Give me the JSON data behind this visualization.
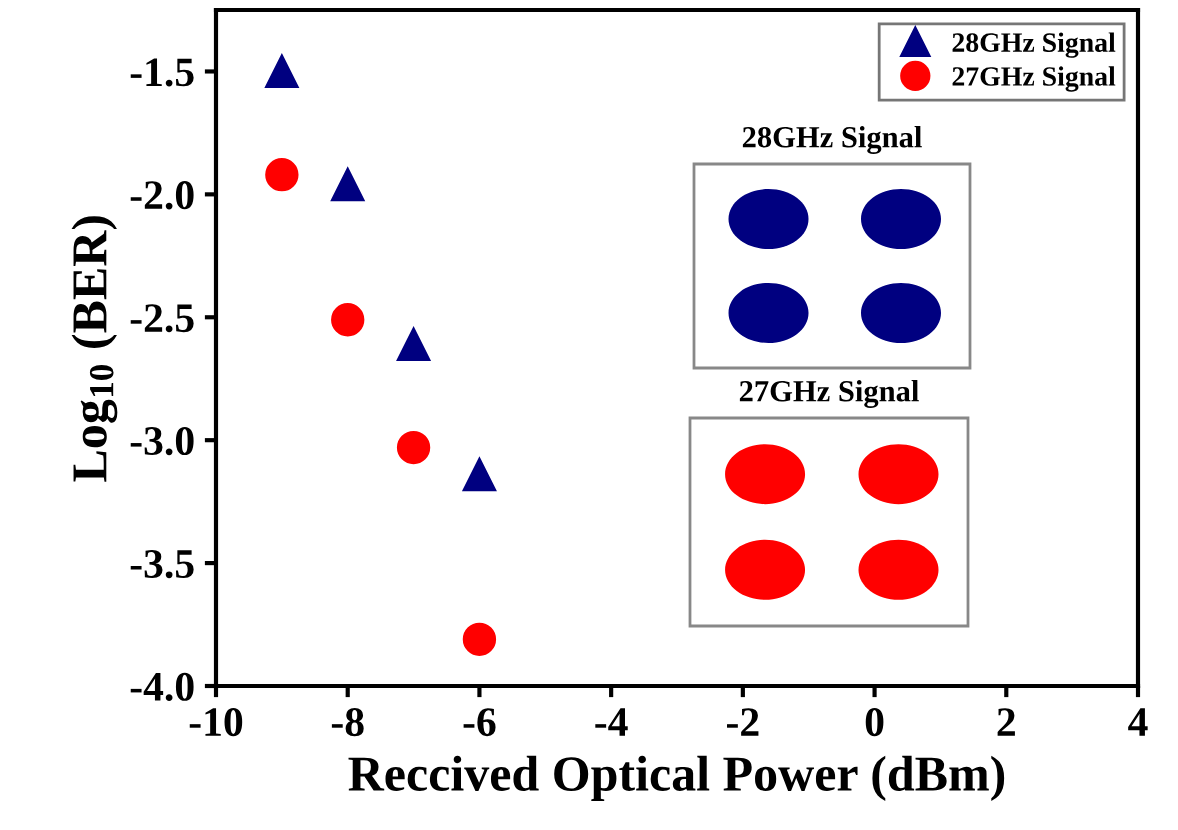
{
  "chart_data": {
    "type": "scatter",
    "xlabel": "Reccived Optical Power (dBm)",
    "ylabel": "Log$_{10}$ (BER)",
    "x": [
      -9,
      -8,
      -7,
      -6
    ],
    "series": [
      {
        "name": "28GHz Signal",
        "color": "#000080",
        "marker": "triangle",
        "values": [
          -1.5,
          -1.96,
          -2.61,
          -3.14
        ]
      },
      {
        "name": "27GHz Signal",
        "color": "#ff0000",
        "marker": "circle",
        "values": [
          -1.92,
          -2.51,
          -3.03,
          -3.81
        ]
      }
    ],
    "xlim": [
      -10,
      4
    ],
    "xticks": [
      -10,
      -8,
      -6,
      -4,
      -2,
      0,
      2,
      4
    ],
    "ylim": [
      -4.0,
      -1.25
    ],
    "yticks": [
      {
        "value": -4.0,
        "label": "-4.0"
      },
      {
        "value": -3.5,
        "label": "-3.5"
      },
      {
        "value": -3.0,
        "label": "-3.0"
      },
      {
        "value": -2.5,
        "label": "-2.5"
      },
      {
        "value": -2.0,
        "label": "-2.0"
      },
      {
        "value": -1.5,
        "label": "-1.5"
      }
    ],
    "annotations": [
      "28GHz Signal",
      "27GHz Signal"
    ],
    "grid": false,
    "legend": "top right"
  }
}
